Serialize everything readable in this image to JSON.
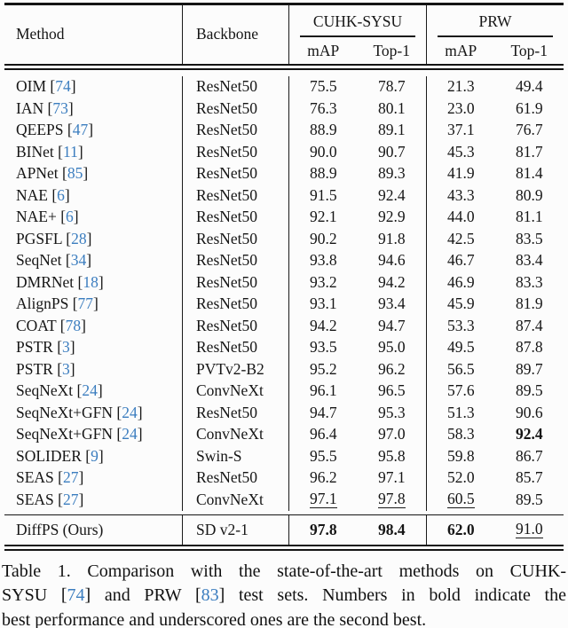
{
  "table": {
    "header": {
      "method": "Method",
      "backbone": "Backbone",
      "group_cuhk": "CUHK-SYSU",
      "group_prw": "PRW",
      "sub": [
        "mAP",
        "Top-1",
        "mAP",
        "Top-1"
      ]
    },
    "rows": [
      {
        "method_segments": [
          {
            "t": "OIM ["
          },
          {
            "t": "74",
            "c": true
          },
          {
            "t": "]"
          }
        ],
        "backbone": "ResNet50",
        "values": [
          "75.5",
          "78.7",
          "21.3",
          "49.4"
        ],
        "styles": [
          "",
          "",
          "",
          ""
        ]
      },
      {
        "method_segments": [
          {
            "t": "IAN ["
          },
          {
            "t": "73",
            "c": true
          },
          {
            "t": "]"
          }
        ],
        "backbone": "ResNet50",
        "values": [
          "76.3",
          "80.1",
          "23.0",
          "61.9"
        ],
        "styles": [
          "",
          "",
          "",
          ""
        ]
      },
      {
        "method_segments": [
          {
            "t": "QEEPS ["
          },
          {
            "t": "47",
            "c": true
          },
          {
            "t": "]"
          }
        ],
        "backbone": "ResNet50",
        "values": [
          "88.9",
          "89.1",
          "37.1",
          "76.7"
        ],
        "styles": [
          "",
          "",
          "",
          ""
        ]
      },
      {
        "method_segments": [
          {
            "t": "BINet ["
          },
          {
            "t": "11",
            "c": true
          },
          {
            "t": "]"
          }
        ],
        "backbone": "ResNet50",
        "values": [
          "90.0",
          "90.7",
          "45.3",
          "81.7"
        ],
        "styles": [
          "",
          "",
          "",
          ""
        ]
      },
      {
        "method_segments": [
          {
            "t": "APNet ["
          },
          {
            "t": "85",
            "c": true
          },
          {
            "t": "]"
          }
        ],
        "backbone": "ResNet50",
        "values": [
          "88.9",
          "89.3",
          "41.9",
          "81.4"
        ],
        "styles": [
          "",
          "",
          "",
          ""
        ]
      },
      {
        "method_segments": [
          {
            "t": "NAE ["
          },
          {
            "t": "6",
            "c": true
          },
          {
            "t": "]"
          }
        ],
        "backbone": "ResNet50",
        "values": [
          "91.5",
          "92.4",
          "43.3",
          "80.9"
        ],
        "styles": [
          "",
          "",
          "",
          ""
        ]
      },
      {
        "method_segments": [
          {
            "t": "NAE+ ["
          },
          {
            "t": "6",
            "c": true
          },
          {
            "t": "]"
          }
        ],
        "backbone": "ResNet50",
        "values": [
          "92.1",
          "92.9",
          "44.0",
          "81.1"
        ],
        "styles": [
          "",
          "",
          "",
          ""
        ]
      },
      {
        "method_segments": [
          {
            "t": "PGSFL ["
          },
          {
            "t": "28",
            "c": true
          },
          {
            "t": "]"
          }
        ],
        "backbone": "ResNet50",
        "values": [
          "90.2",
          "91.8",
          "42.5",
          "83.5"
        ],
        "styles": [
          "",
          "",
          "",
          ""
        ]
      },
      {
        "method_segments": [
          {
            "t": "SeqNet ["
          },
          {
            "t": "34",
            "c": true
          },
          {
            "t": "]"
          }
        ],
        "backbone": "ResNet50",
        "values": [
          "93.8",
          "94.6",
          "46.7",
          "83.4"
        ],
        "styles": [
          "",
          "",
          "",
          ""
        ]
      },
      {
        "method_segments": [
          {
            "t": "DMRNet ["
          },
          {
            "t": "18",
            "c": true
          },
          {
            "t": "]"
          }
        ],
        "backbone": "ResNet50",
        "values": [
          "93.2",
          "94.2",
          "46.9",
          "83.3"
        ],
        "styles": [
          "",
          "",
          "",
          ""
        ]
      },
      {
        "method_segments": [
          {
            "t": "AlignPS ["
          },
          {
            "t": "77",
            "c": true
          },
          {
            "t": "]"
          }
        ],
        "backbone": "ResNet50",
        "values": [
          "93.1",
          "93.4",
          "45.9",
          "81.9"
        ],
        "styles": [
          "",
          "",
          "",
          ""
        ]
      },
      {
        "method_segments": [
          {
            "t": "COAT ["
          },
          {
            "t": "78",
            "c": true
          },
          {
            "t": "]"
          }
        ],
        "backbone": "ResNet50",
        "values": [
          "94.2",
          "94.7",
          "53.3",
          "87.4"
        ],
        "styles": [
          "",
          "",
          "",
          ""
        ]
      },
      {
        "method_segments": [
          {
            "t": "PSTR ["
          },
          {
            "t": "3",
            "c": true
          },
          {
            "t": "]"
          }
        ],
        "backbone": "ResNet50",
        "values": [
          "93.5",
          "95.0",
          "49.5",
          "87.8"
        ],
        "styles": [
          "",
          "",
          "",
          ""
        ]
      },
      {
        "method_segments": [
          {
            "t": "PSTR ["
          },
          {
            "t": "3",
            "c": true
          },
          {
            "t": "]"
          }
        ],
        "backbone": "PVTv2-B2",
        "values": [
          "95.2",
          "96.2",
          "56.5",
          "89.7"
        ],
        "styles": [
          "",
          "",
          "",
          ""
        ]
      },
      {
        "method_segments": [
          {
            "t": "SeqNeXt ["
          },
          {
            "t": "24",
            "c": true
          },
          {
            "t": "]"
          }
        ],
        "backbone": "ConvNeXt",
        "values": [
          "96.1",
          "96.5",
          "57.6",
          "89.5"
        ],
        "styles": [
          "",
          "",
          "",
          ""
        ]
      },
      {
        "method_segments": [
          {
            "t": "SeqNeXt+GFN ["
          },
          {
            "t": "24",
            "c": true
          },
          {
            "t": "]"
          }
        ],
        "backbone": "ResNet50",
        "values": [
          "94.7",
          "95.3",
          "51.3",
          "90.6"
        ],
        "styles": [
          "",
          "",
          "",
          ""
        ]
      },
      {
        "method_segments": [
          {
            "t": "SeqNeXt+GFN ["
          },
          {
            "t": "24",
            "c": true
          },
          {
            "t": "]"
          }
        ],
        "backbone": "ConvNeXt",
        "values": [
          "96.4",
          "97.0",
          "58.3",
          "92.4"
        ],
        "styles": [
          "",
          "",
          "",
          "b"
        ]
      },
      {
        "method_segments": [
          {
            "t": "SOLIDER ["
          },
          {
            "t": "9",
            "c": true
          },
          {
            "t": "]"
          }
        ],
        "backbone": "Swin-S",
        "values": [
          "95.5",
          "95.8",
          "59.8",
          "86.7"
        ],
        "styles": [
          "",
          "",
          "",
          ""
        ]
      },
      {
        "method_segments": [
          {
            "t": "SEAS ["
          },
          {
            "t": "27",
            "c": true
          },
          {
            "t": "]"
          }
        ],
        "backbone": "ResNet50",
        "values": [
          "96.2",
          "97.1",
          "52.0",
          "85.7"
        ],
        "styles": [
          "",
          "",
          "",
          ""
        ]
      },
      {
        "method_segments": [
          {
            "t": "SEAS ["
          },
          {
            "t": "27",
            "c": true
          },
          {
            "t": "]"
          }
        ],
        "backbone": "ConvNeXt",
        "values": [
          "97.1",
          "97.8",
          "60.5",
          "89.5"
        ],
        "styles": [
          "u",
          "u",
          "u",
          ""
        ]
      }
    ],
    "final": {
      "method_segments": [
        {
          "t": "DiffPS (Ours)"
        }
      ],
      "backbone": "SD v2-1",
      "values": [
        "97.8",
        "98.4",
        "62.0",
        "91.0"
      ],
      "styles": [
        "b",
        "b",
        "b",
        "u"
      ]
    }
  },
  "caption": {
    "lines": [
      [
        {
          "t": "Table 1. Comparison with the state-of-the-art methods on CUHK-"
        }
      ],
      [
        {
          "t": "SYSU ["
        },
        {
          "t": "74",
          "c": true
        },
        {
          "t": "] and PRW ["
        },
        {
          "t": "83",
          "c": true
        },
        {
          "t": "] test sets. Numbers in bold indicate the"
        }
      ],
      [
        {
          "t": "best performance and underscored ones are the second best."
        }
      ]
    ]
  },
  "colors": {
    "citation_blue": "#3b7dbf",
    "rule_black": "#141414",
    "text": "#161616"
  }
}
